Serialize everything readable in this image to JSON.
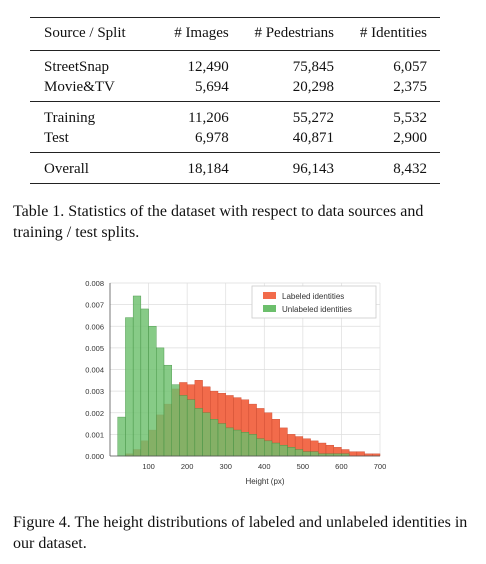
{
  "table": {
    "headers": [
      "Source / Split",
      "# Images",
      "# Pedestrians",
      "# Identities"
    ],
    "groups": [
      [
        [
          "StreetSnap",
          "12,490",
          "75,845",
          "6,057"
        ],
        [
          "Movie&TV",
          "5,694",
          "20,298",
          "2,375"
        ]
      ],
      [
        [
          "Training",
          "11,206",
          "55,272",
          "5,532"
        ],
        [
          "Test",
          "6,978",
          "40,871",
          "2,900"
        ]
      ],
      [
        [
          "Overall",
          "18,184",
          "96,143",
          "8,432"
        ]
      ]
    ],
    "caption": "Table 1. Statistics of the dataset with respect to data sources and training / test splits."
  },
  "figure": {
    "caption": "Figure 4. The height distributions of labeled and unlabeled identities in our dataset."
  },
  "chart_data": {
    "type": "bar",
    "xlabel": "Height (px)",
    "ylabel": "",
    "xlim": [
      0,
      700
    ],
    "ylim": [
      0,
      0.008
    ],
    "xticks": [
      "100",
      "200",
      "300",
      "400",
      "500",
      "600",
      "700"
    ],
    "yticks": [
      "0.000",
      "0.001",
      "0.002",
      "0.003",
      "0.004",
      "0.005",
      "0.006",
      "0.007",
      "0.008"
    ],
    "bin_width": 20,
    "bin_start": 0,
    "grid": true,
    "legend": "top-right",
    "series": [
      {
        "name": "Labeled identities",
        "color": "#f26b4b",
        "values": [
          0,
          0,
          0.0001,
          0.0003,
          0.0007,
          0.0012,
          0.0019,
          0.0024,
          0.0031,
          0.0034,
          0.0033,
          0.0035,
          0.0032,
          0.003,
          0.0029,
          0.0028,
          0.0027,
          0.0026,
          0.0024,
          0.0022,
          0.002,
          0.0017,
          0.0013,
          0.001,
          0.0009,
          0.0008,
          0.0007,
          0.0006,
          0.0005,
          0.0004,
          0.0003,
          0.0002,
          0.0002,
          0.0001,
          0.0001
        ]
      },
      {
        "name": "Unlabeled identities",
        "color": "#6cbf6c",
        "values": [
          0,
          0.0018,
          0.0064,
          0.0074,
          0.0068,
          0.006,
          0.005,
          0.0042,
          0.0033,
          0.0028,
          0.0026,
          0.0022,
          0.002,
          0.0017,
          0.0015,
          0.0013,
          0.0012,
          0.0011,
          0.001,
          0.0008,
          0.0007,
          0.0006,
          0.0005,
          0.0004,
          0.0003,
          0.0002,
          0.0002,
          0.0001,
          0.0001,
          0.0001,
          0.0001,
          0,
          0,
          0,
          0
        ]
      }
    ]
  }
}
